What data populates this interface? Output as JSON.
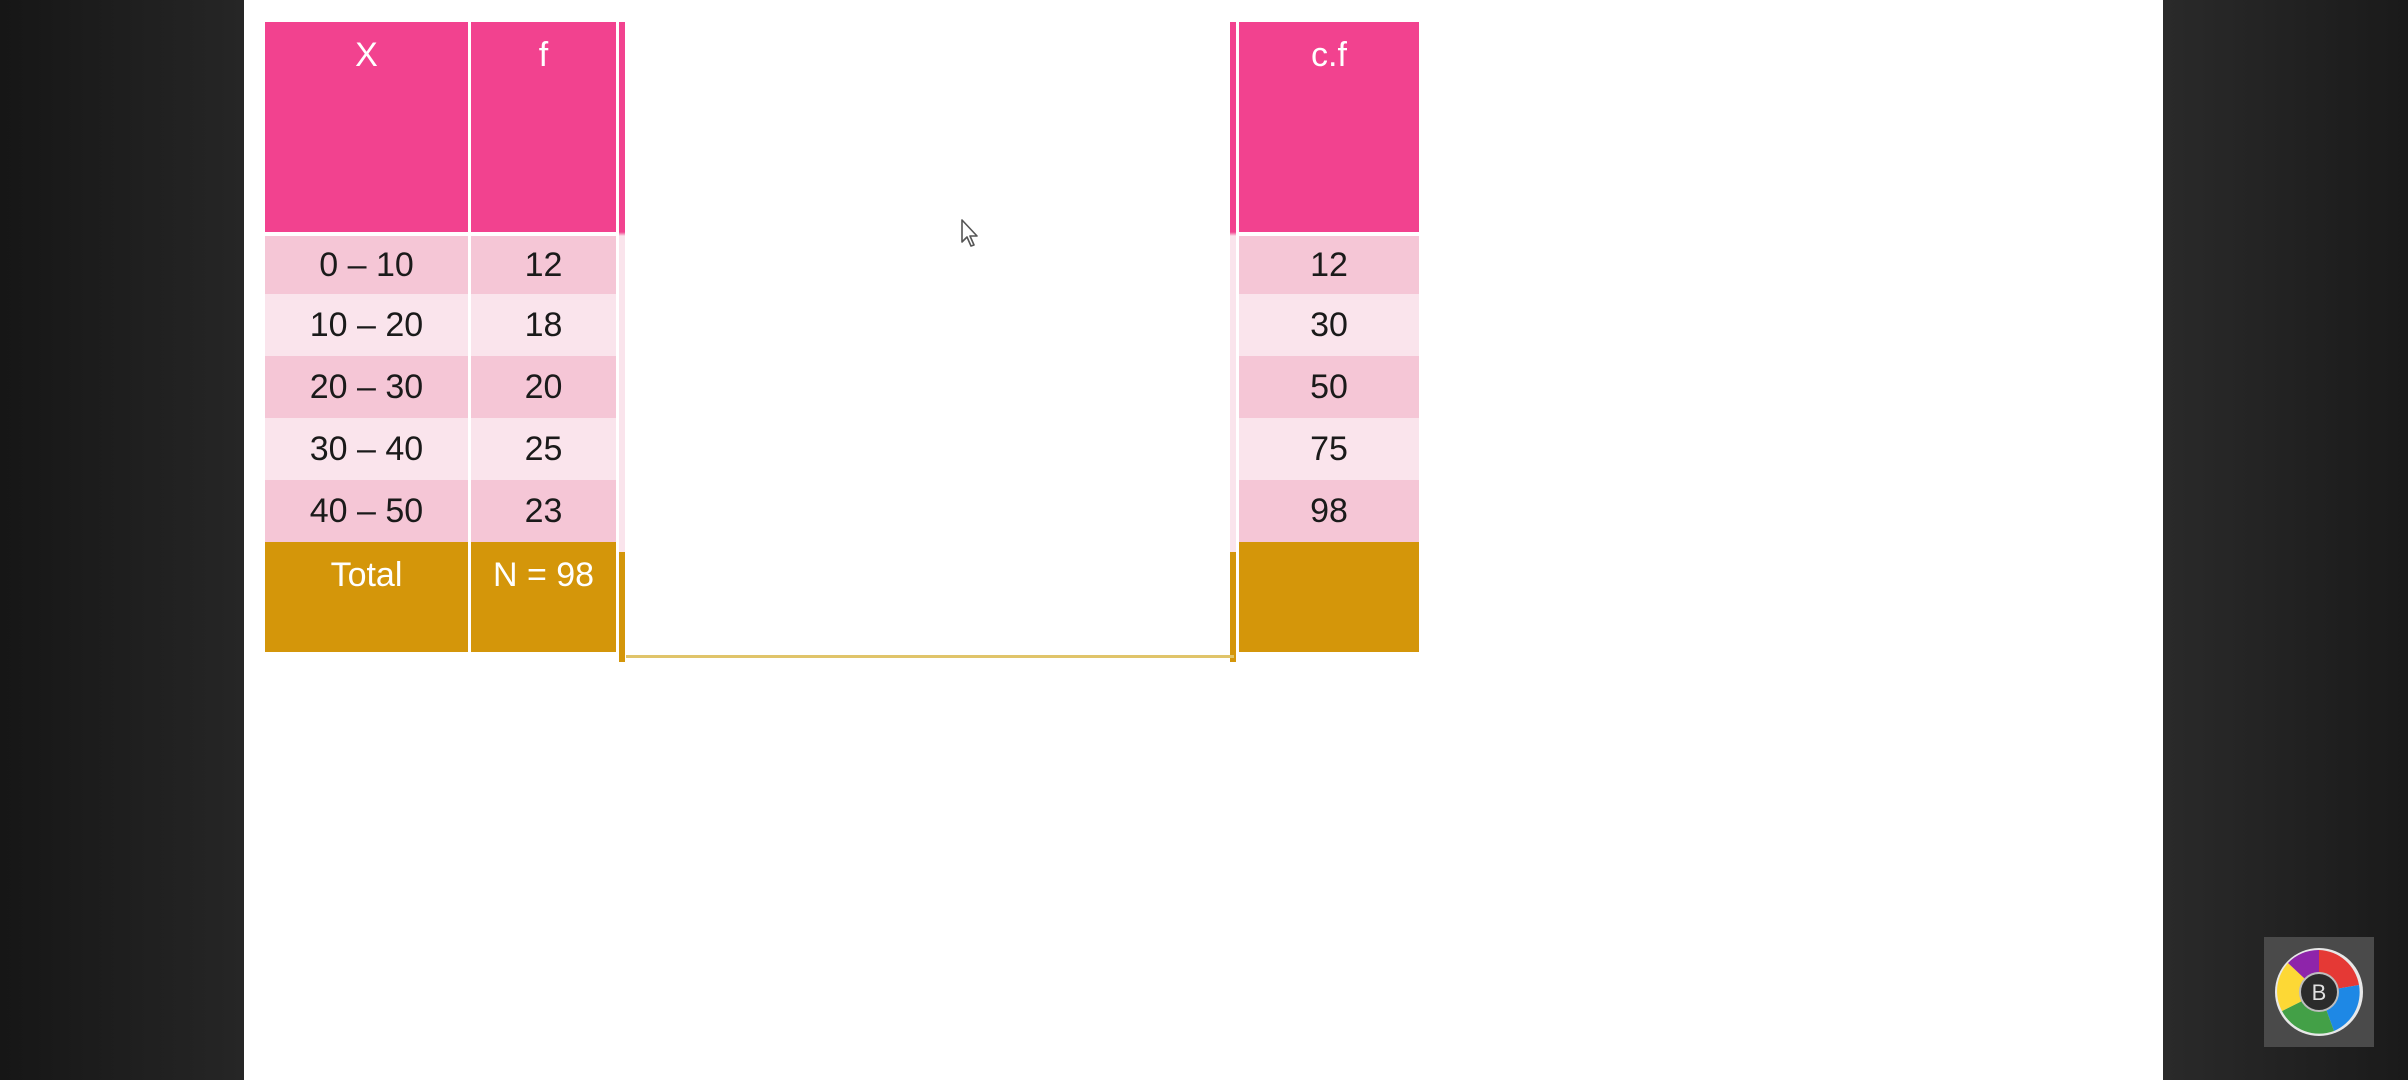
{
  "table": {
    "headers": {
      "x": "X",
      "f": "f",
      "cf": "c.f"
    },
    "rows": [
      {
        "x": "0 – 10",
        "f": "12",
        "cf": "12"
      },
      {
        "x": "10 – 20",
        "f": "18",
        "cf": "30"
      },
      {
        "x": "20 – 30",
        "f": "20",
        "cf": "50"
      },
      {
        "x": "30 – 40",
        "f": "25",
        "cf": "75"
      },
      {
        "x": "40 – 50",
        "f": "23",
        "cf": "98"
      }
    ],
    "total": {
      "label": "Total",
      "f": "N = 98",
      "cf": ""
    }
  },
  "colors": {
    "header": "#f2428f",
    "row_dark": "#f5c6d6",
    "row_light": "#fae4ec",
    "total": "#d4960a"
  },
  "overlay_logo": {
    "letter": "B",
    "icon": "channel-logo-icon"
  }
}
